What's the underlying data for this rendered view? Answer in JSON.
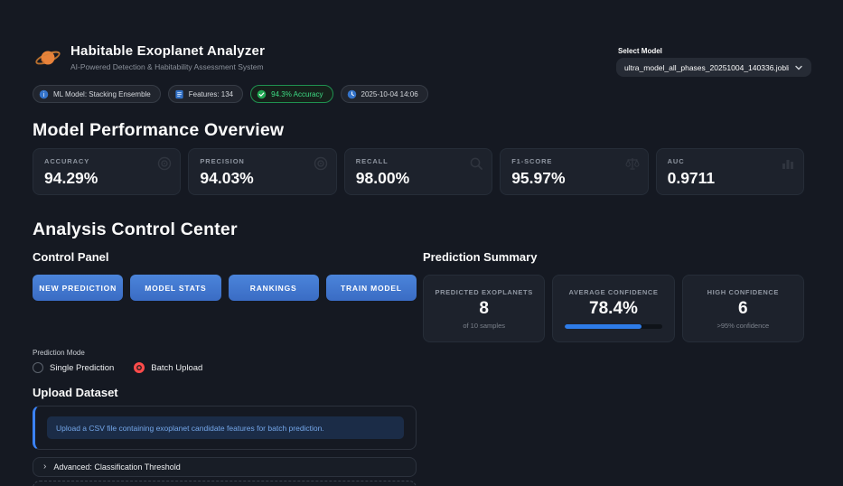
{
  "app": {
    "title": "Habitable Exoplanet Analyzer",
    "subtitle": "AI-Powered Detection & Habitability Assessment System",
    "logo": "saturn-icon"
  },
  "model_selector": {
    "label": "Select Model",
    "value": "ultra_model_all_phases_20251004_140336.joblib"
  },
  "badges": [
    {
      "icon": "info-icon",
      "label": "ML Model: Stacking Ensemble",
      "variant": "default"
    },
    {
      "icon": "features-icon",
      "label": "Features: 134",
      "variant": "default"
    },
    {
      "icon": "check-icon",
      "label": "94.3% Accuracy",
      "variant": "success"
    },
    {
      "icon": "clock-icon",
      "label": "2025-10-04 14:06",
      "variant": "default"
    }
  ],
  "performance": {
    "heading": "Model Performance Overview",
    "metrics": [
      {
        "label": "ACCURACY",
        "value": "94.29%",
        "icon": "target-icon"
      },
      {
        "label": "PRECISION",
        "value": "94.03%",
        "icon": "target-icon"
      },
      {
        "label": "RECALL",
        "value": "98.00%",
        "icon": "magnifier-icon"
      },
      {
        "label": "F1-SCORE",
        "value": "95.97%",
        "icon": "balance-icon"
      },
      {
        "label": "AUC",
        "value": "0.9711",
        "icon": "bar-chart-icon"
      }
    ]
  },
  "control_center": {
    "heading": "Analysis Control Center",
    "control_panel": {
      "heading": "Control Panel",
      "buttons": [
        {
          "label": "NEW PREDICTION"
        },
        {
          "label": "MODEL STATS"
        },
        {
          "label": "RANKINGS"
        },
        {
          "label": "TRAIN MODEL"
        }
      ]
    },
    "prediction_summary": {
      "heading": "Prediction Summary",
      "cards": [
        {
          "label": "PREDICTED EXOPLANETS",
          "value": "8",
          "subtext": "of 10 samples"
        },
        {
          "label": "AVERAGE CONFIDENCE",
          "value": "78.4%",
          "progress_pct": 78.4
        },
        {
          "label": "HIGH CONFIDENCE",
          "value": "6",
          "subtext": ">95% confidence"
        }
      ]
    },
    "prediction_mode": {
      "label": "Prediction Mode",
      "options": [
        {
          "label": "Single Prediction",
          "selected": false
        },
        {
          "label": "Batch Upload",
          "selected": true
        }
      ]
    },
    "upload": {
      "heading": "Upload Dataset",
      "info_message": "Upload a CSV file containing exoplanet candidate features for batch prediction."
    },
    "advanced_expander": {
      "label": "Advanced: Classification Threshold"
    }
  },
  "colors": {
    "accent_blue": "#3b82f6",
    "success_green": "#3ddc84",
    "selected_radio_red": "#ff4b4b",
    "info_text_blue": "#74a7ea",
    "button_blue": "#3a6cc4"
  }
}
